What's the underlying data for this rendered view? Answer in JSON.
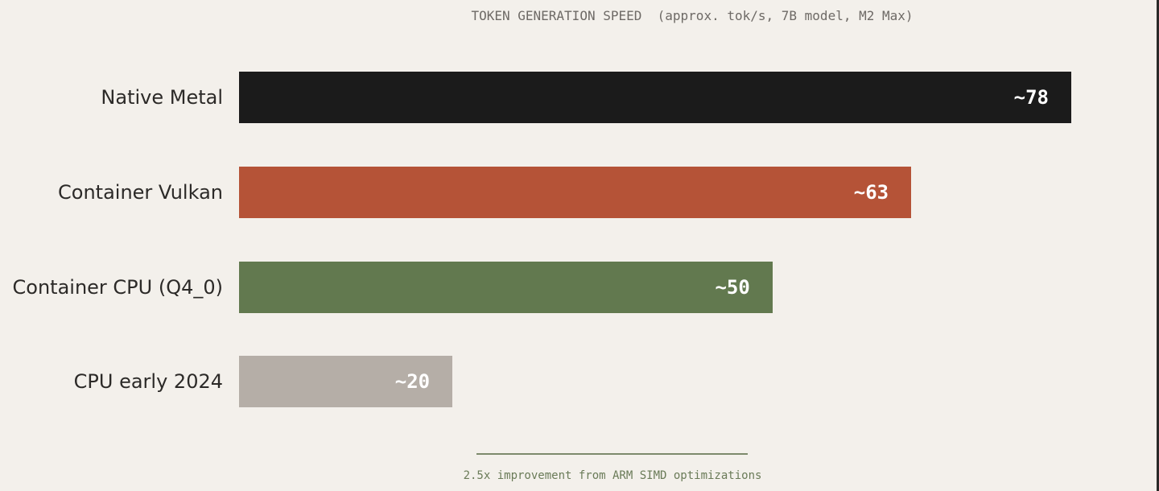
{
  "chart_data": {
    "type": "bar",
    "orientation": "horizontal",
    "title": "TOKEN GENERATION SPEED  (approx. tok/s, 7B model, M2 Max)",
    "categories": [
      "Native Metal",
      "Container Vulkan",
      "Container CPU (Q4_0)",
      "CPU early 2024"
    ],
    "values": [
      78,
      63,
      50,
      20
    ],
    "value_labels": [
      "~78",
      "~63",
      "~50",
      "~20"
    ],
    "colors": [
      "#1b1b1b",
      "#b55337",
      "#62794f",
      "#b5aea7"
    ],
    "xlim": [
      0,
      78
    ],
    "grid": false,
    "annotation": "2.5x improvement from ARM SIMD optimizations",
    "annotation_color": "#6a7b58"
  }
}
